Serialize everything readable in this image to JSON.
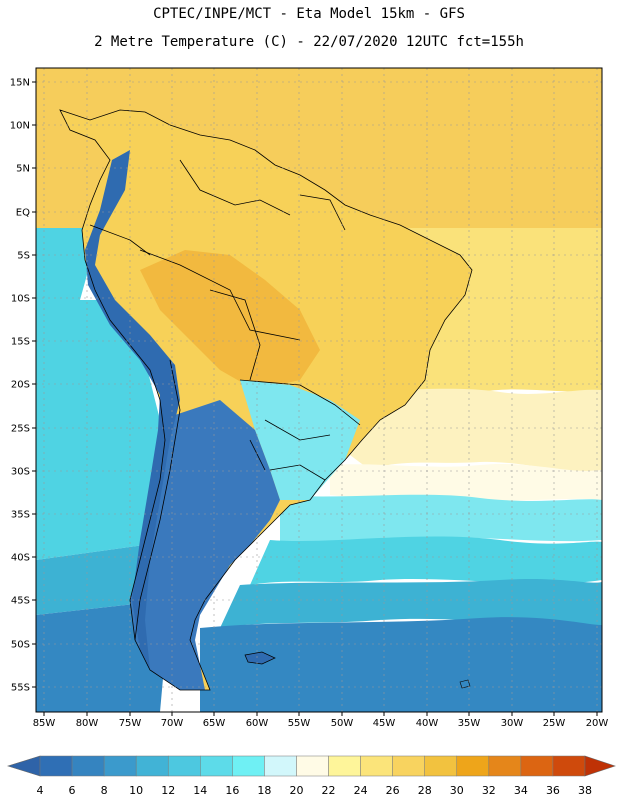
{
  "header": {
    "line1": "CPTEC/INPE/MCT -  Eta Model 15km - GFS",
    "line2": "2 Metre Temperature (C) - 22/07/2020 12UTC fct=155h"
  },
  "map": {
    "lat_ticks": [
      "15N",
      "10N",
      "5N",
      "EQ",
      "5S",
      "10S",
      "15S",
      "20S",
      "25S",
      "30S",
      "35S",
      "40S",
      "45S",
      "50S",
      "55S"
    ],
    "lon_ticks": [
      "85W",
      "80W",
      "75W",
      "70W",
      "65W",
      "60W",
      "55W",
      "50W",
      "45W",
      "40W",
      "35W",
      "30W",
      "25W",
      "20W"
    ],
    "colors": {
      "ocean_north_far": "#f6cd5b",
      "ocean_north": "#fae27a",
      "ocean_mid": "#fdf2c0",
      "ocean_pale": "#fffbe6",
      "ocean_cool": "#7ee7ef",
      "ocean_cyan": "#4fd3e3",
      "ocean_mid_blue": "#3db2d3",
      "ocean_blue": "#3488c2",
      "ocean_deep": "#2f6bb0",
      "land_hot": "#f2b93f",
      "land_warm": "#f7d158",
      "andes_cold": "#2f6bb0",
      "patagonia": "#3a79bd"
    }
  },
  "colorbar": {
    "labels": [
      "4",
      "6",
      "8",
      "10",
      "12",
      "14",
      "16",
      "18",
      "20",
      "22",
      "24",
      "26",
      "28",
      "30",
      "32",
      "34",
      "36",
      "38"
    ],
    "colors": [
      "#2e63a8",
      "#2f6fb5",
      "#3584c0",
      "#3b9acc",
      "#41b3d6",
      "#4dc8e0",
      "#5ddbe9",
      "#6ff0f4",
      "#d2f7fb",
      "#fffbe6",
      "#fef59a",
      "#fbe47a",
      "#f8d35f",
      "#f2c23f",
      "#eea51a",
      "#e5861a",
      "#dc6512",
      "#cf4a0c",
      "#bf3206"
    ]
  }
}
